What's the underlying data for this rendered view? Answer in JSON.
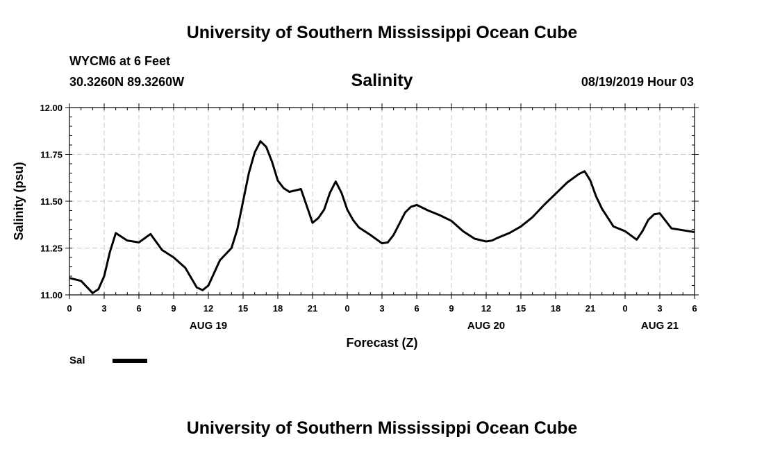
{
  "header": {
    "top_title": "University of Southern Mississippi Ocean Cube",
    "station": "WYCM6 at 6 Feet",
    "coords": "30.3260N 89.3260W",
    "chart_title": "Salinity",
    "timestamp": "08/19/2019 Hour 03",
    "bottom_title": "University of Southern Mississippi Ocean Cube"
  },
  "chart_data": {
    "type": "line",
    "title": "Salinity",
    "xlabel": "Forecast (Z)",
    "ylabel": "Salinity (psu)",
    "ylim": [
      11.0,
      12.0
    ],
    "yticks": [
      "11.00",
      "11.25",
      "11.50",
      "11.75",
      "12.00"
    ],
    "xlim": [
      0,
      54
    ],
    "xticks": [
      {
        "x": 0,
        "label": "0"
      },
      {
        "x": 3,
        "label": "3"
      },
      {
        "x": 6,
        "label": "6"
      },
      {
        "x": 9,
        "label": "9"
      },
      {
        "x": 12,
        "label": "12"
      },
      {
        "x": 15,
        "label": "15"
      },
      {
        "x": 18,
        "label": "18"
      },
      {
        "x": 21,
        "label": "21"
      },
      {
        "x": 24,
        "label": "0"
      },
      {
        "x": 27,
        "label": "3"
      },
      {
        "x": 30,
        "label": "6"
      },
      {
        "x": 33,
        "label": "9"
      },
      {
        "x": 36,
        "label": "12"
      },
      {
        "x": 39,
        "label": "15"
      },
      {
        "x": 42,
        "label": "18"
      },
      {
        "x": 45,
        "label": "21"
      },
      {
        "x": 48,
        "label": "0"
      },
      {
        "x": 51,
        "label": "3"
      },
      {
        "x": 54,
        "label": "6"
      }
    ],
    "date_labels": [
      {
        "x": 12,
        "label": "AUG 19"
      },
      {
        "x": 36,
        "label": "AUG 20"
      },
      {
        "x": 51,
        "label": "AUG 21"
      }
    ],
    "legend": [
      {
        "name": "Sal",
        "color": "#000000"
      }
    ],
    "series": [
      {
        "name": "Sal",
        "x": [
          0,
          1,
          2,
          2.5,
          3,
          3.5,
          4,
          5,
          6,
          7,
          8,
          9,
          10,
          11,
          11.5,
          12,
          13,
          14,
          14.5,
          15,
          15.5,
          16,
          16.5,
          17,
          17.5,
          18,
          18.5,
          19,
          20,
          21,
          21.5,
          22,
          22.5,
          23,
          23.5,
          24,
          24.5,
          25,
          26,
          27,
          27.5,
          28,
          28.5,
          29,
          29.5,
          30,
          31,
          32,
          33,
          34,
          35,
          36,
          36.5,
          37,
          38,
          39,
          40,
          41,
          42,
          43,
          44,
          44.5,
          45,
          45.5,
          46,
          47,
          48,
          49,
          49.5,
          50,
          50.5,
          51,
          52,
          53,
          54
        ],
        "values": [
          11.09,
          11.075,
          11.01,
          11.03,
          11.1,
          11.23,
          11.33,
          11.29,
          11.28,
          11.325,
          11.24,
          11.2,
          11.145,
          11.04,
          11.025,
          11.05,
          11.185,
          11.25,
          11.35,
          11.5,
          11.65,
          11.76,
          11.82,
          11.79,
          11.71,
          11.61,
          11.57,
          11.55,
          11.565,
          11.385,
          11.41,
          11.455,
          11.545,
          11.605,
          11.545,
          11.455,
          11.4,
          11.36,
          11.32,
          11.275,
          11.28,
          11.32,
          11.38,
          11.44,
          11.47,
          11.48,
          11.45,
          11.425,
          11.395,
          11.34,
          11.3,
          11.285,
          11.29,
          11.305,
          11.33,
          11.365,
          11.415,
          11.48,
          11.54,
          11.6,
          11.645,
          11.66,
          11.61,
          11.525,
          11.46,
          11.365,
          11.34,
          11.295,
          11.34,
          11.4,
          11.43,
          11.435,
          11.355,
          11.345,
          11.335
        ]
      }
    ]
  }
}
